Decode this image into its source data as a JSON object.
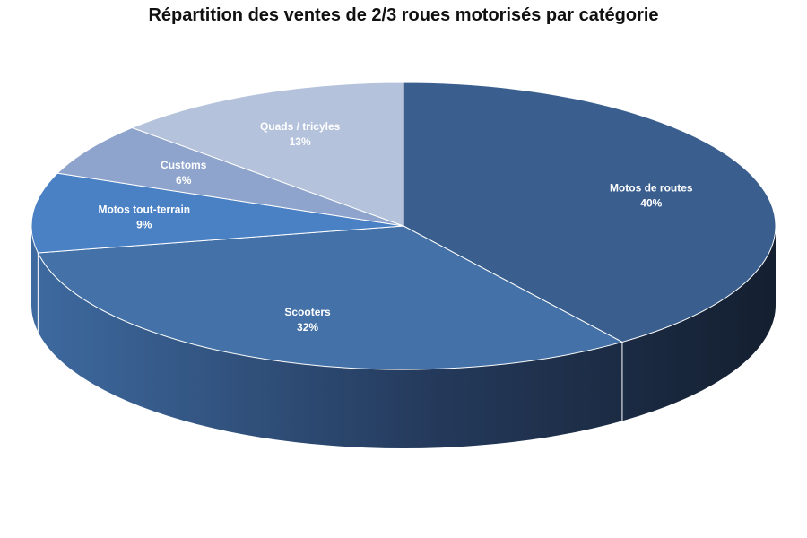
{
  "chart_data": {
    "type": "pie",
    "title": "Répartition des ventes de 2/3 roues motorisés par catégorie",
    "categories": [
      "Motos de routes",
      "Scooters",
      "Motos tout-terrain",
      "Customs",
      "Quads / tricyles"
    ],
    "values": [
      40,
      32,
      9,
      6,
      13
    ],
    "value_labels": [
      "40%",
      "32%",
      "9%",
      "6%",
      "13%"
    ],
    "colors": [
      "#3a5f8f",
      "#4472a8",
      "#4a80c4",
      "#8ea4cc",
      "#b4c2dc"
    ],
    "style": "3d-perspective",
    "legend": "none"
  }
}
